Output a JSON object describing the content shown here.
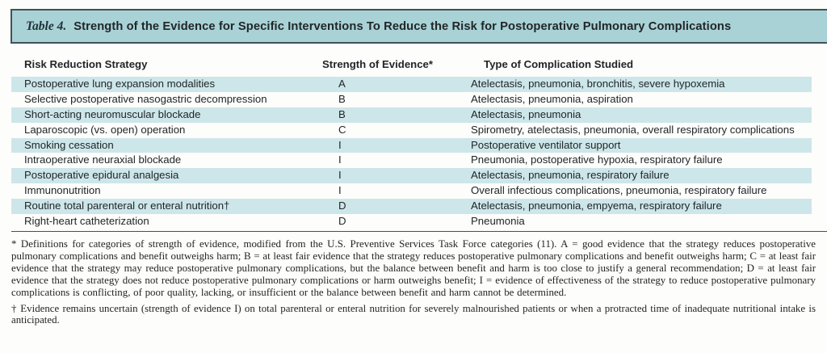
{
  "header": {
    "label": "Table 4.",
    "title": "Strength of the Evidence for Specific Interventions To Reduce the Risk for Postoperative Pulmonary Complications"
  },
  "table": {
    "columns": [
      "Risk Reduction Strategy",
      "Strength of Evidence*",
      "Type of Complication Studied"
    ],
    "rows": [
      {
        "strategy": "Postoperative lung expansion modalities",
        "evidence": "A",
        "complication": "Atelectasis, pneumonia, bronchitis, severe hypoxemia"
      },
      {
        "strategy": "Selective postoperative nasogastric decompression",
        "evidence": "B",
        "complication": "Atelectasis, pneumonia, aspiration"
      },
      {
        "strategy": "Short-acting neuromuscular blockade",
        "evidence": "B",
        "complication": "Atelectasis, pneumonia"
      },
      {
        "strategy": "Laparoscopic (vs. open) operation",
        "evidence": "C",
        "complication": "Spirometry, atelectasis, pneumonia, overall respiratory complications"
      },
      {
        "strategy": "Smoking cessation",
        "evidence": "I",
        "complication": "Postoperative ventilator support"
      },
      {
        "strategy": "Intraoperative neuraxial blockade",
        "evidence": "I",
        "complication": "Pneumonia, postoperative hypoxia, respiratory failure"
      },
      {
        "strategy": "Postoperative epidural analgesia",
        "evidence": "I",
        "complication": "Atelectasis, pneumonia, respiratory failure"
      },
      {
        "strategy": "Immunonutrition",
        "evidence": "I",
        "complication": "Overall infectious complications, pneumonia, respiratory failure"
      },
      {
        "strategy": "Routine total parenteral or enteral nutrition†",
        "evidence": "D",
        "complication": "Atelectasis, pneumonia, empyema, respiratory failure"
      },
      {
        "strategy": "Right-heart catheterization",
        "evidence": "D",
        "complication": "Pneumonia"
      }
    ]
  },
  "footnotes": {
    "asterisk": "* Definitions for categories of strength of evidence, modified from the U.S. Preventive Services Task Force categories (11). A = good evidence that the strategy reduces postoperative pulmonary complications and benefit outweighs harm; B = at least fair evidence that the strategy reduces postoperative pulmonary complications and benefit outweighs harm; C = at least fair evidence that the strategy may reduce postoperative pulmonary complications, but the balance between benefit and harm is too close to justify a general recommendation; D = at least fair evidence that the strategy does not reduce postoperative pulmonary complications or harm outweighs benefit; I = evidence of effectiveness of the strategy to reduce postoperative pulmonary complications is conflicting, of poor quality, lacking, or insufficient or the balance between benefit and harm cannot be determined.",
    "dagger": "† Evidence remains uncertain (strength of evidence I) on total parenteral or enteral nutrition for severely malnourished patients or when a protracted time of inadequate nutritional intake is anticipated."
  },
  "colors": {
    "title_bar_bg": "#a9d2d6",
    "row_stripe": "#cde6e9",
    "rule": "#3f5357",
    "text": "#212628"
  }
}
